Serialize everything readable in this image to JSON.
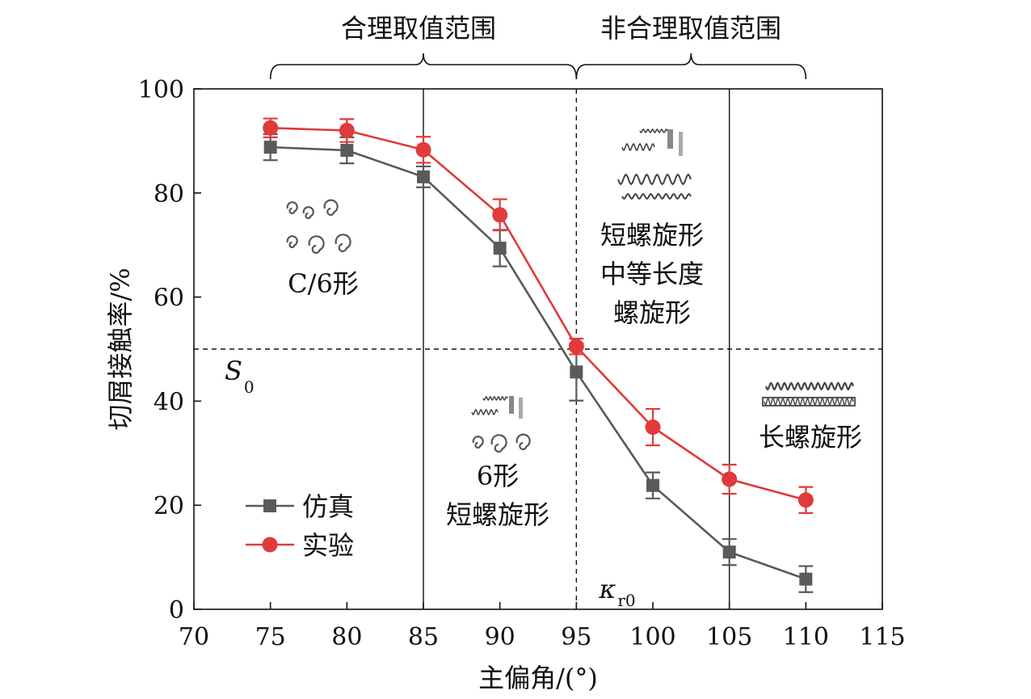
{
  "chart_data": {
    "type": "line",
    "xlabel": "主偏角/(°)",
    "ylabel": "切屑接触率/%",
    "xlim": [
      70,
      115
    ],
    "ylim": [
      0,
      100
    ],
    "x_ticks": [
      "70",
      "75",
      "80",
      "85",
      "90",
      "95",
      "100",
      "105",
      "110",
      "115"
    ],
    "y_ticks": [
      "0",
      "20",
      "40",
      "60",
      "80",
      "100"
    ],
    "x": [
      75,
      80,
      85,
      90,
      95,
      100,
      105,
      110
    ],
    "series": [
      {
        "name": "仿真",
        "color": "#5a5a5a",
        "marker": "square",
        "values": [
          88.8,
          88.2,
          83.1,
          69.4,
          45.6,
          23.8,
          11.0,
          5.8
        ],
        "errors": [
          2.5,
          2.5,
          2.0,
          3.5,
          5.5,
          2.5,
          2.5,
          2.5
        ]
      },
      {
        "name": "实验",
        "color": "#e03a3a",
        "marker": "circle",
        "values": [
          92.5,
          92.0,
          88.3,
          75.8,
          50.5,
          35.0,
          25.0,
          21.0
        ],
        "errors": [
          1.8,
          2.2,
          2.5,
          3.0,
          1.5,
          3.5,
          2.8,
          2.5
        ]
      }
    ],
    "reference_lines": {
      "horizontal": {
        "y": 50,
        "label_main": "S",
        "label_sub": "0",
        "style": "dashed"
      },
      "vertical": [
        {
          "x": 85,
          "style": "solid"
        },
        {
          "x": 95,
          "style": "dashed",
          "label_main": "κ",
          "label_sub": "r0"
        },
        {
          "x": 105,
          "style": "solid"
        }
      ]
    },
    "ranges": [
      {
        "label": "合理取值范围",
        "from": 75,
        "to": 95
      },
      {
        "label": "非合理取值范围",
        "from": 95,
        "to": 110
      }
    ],
    "annotations": [
      {
        "key": "c6",
        "lines": [
          "C/6形"
        ]
      },
      {
        "key": "six_short",
        "lines": [
          "6形",
          "短螺旋形"
        ]
      },
      {
        "key": "short_medium",
        "lines": [
          "短螺旋形",
          "中等长度",
          "螺旋形"
        ]
      },
      {
        "key": "long",
        "lines": [
          "长螺旋形"
        ]
      }
    ],
    "legend_position": "bottom-left",
    "grid": false
  }
}
